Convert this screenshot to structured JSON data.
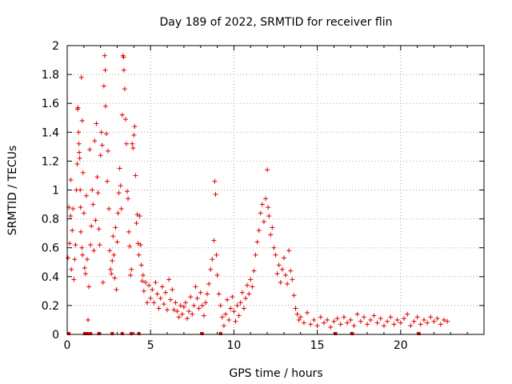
{
  "chart_data": {
    "type": "scatter",
    "title": "Day 189 of 2022, SRMTID for receiver flin",
    "xlabel": "GPS time / hours",
    "ylabel": "SRMTID / TECUs",
    "xlim": [
      0,
      25
    ],
    "ylim": [
      0,
      2
    ],
    "xticks": [
      0,
      5,
      10,
      15,
      20
    ],
    "yticks": [
      0,
      0.2,
      0.4,
      0.6,
      0.8,
      1,
      1.2,
      1.4,
      1.6,
      1.8,
      2
    ],
    "grid": true,
    "marker": "+",
    "color": "#e00000",
    "x_hours_note": "x in hours, y in TECU",
    "series": [
      {
        "name": "SRMTID",
        "points": [
          [
            0.05,
            0.53
          ],
          [
            0.1,
            0.88
          ],
          [
            0.15,
            0.63
          ],
          [
            0.2,
            0.82
          ],
          [
            0.22,
            1.07
          ],
          [
            0.25,
            0.45
          ],
          [
            0.3,
            0.72
          ],
          [
            0.35,
            0.87
          ],
          [
            0.4,
            0.38
          ],
          [
            0.45,
            0.52
          ],
          [
            0.5,
            0.62
          ],
          [
            0.55,
            1.0
          ],
          [
            0.6,
            1.18
          ],
          [
            0.62,
            1.56
          ],
          [
            0.65,
            1.57
          ],
          [
            0.68,
            1.4
          ],
          [
            0.7,
            1.32
          ],
          [
            0.72,
            1.26
          ],
          [
            0.75,
            1.22
          ],
          [
            0.78,
            1.0
          ],
          [
            0.8,
            0.88
          ],
          [
            0.82,
            0.71
          ],
          [
            0.85,
            1.78
          ],
          [
            0.88,
            0.6
          ],
          [
            0.9,
            1.48
          ],
          [
            0.92,
            0.55
          ],
          [
            0.95,
            1.12
          ],
          [
            1.0,
            0.84
          ],
          [
            1.05,
            0.46
          ],
          [
            1.1,
            0.42
          ],
          [
            1.15,
            0.96
          ],
          [
            1.2,
            0.52
          ],
          [
            1.25,
            0.1
          ],
          [
            1.3,
            0.33
          ],
          [
            1.35,
            1.28
          ],
          [
            1.4,
            0.62
          ],
          [
            1.45,
            0.75
          ],
          [
            1.5,
            1.0
          ],
          [
            1.55,
            0.9
          ],
          [
            1.6,
            0.58
          ],
          [
            1.65,
            1.34
          ],
          [
            1.7,
            0.79
          ],
          [
            1.75,
            1.46
          ],
          [
            1.8,
            1.09
          ],
          [
            1.85,
            0.98
          ],
          [
            1.9,
            0.73
          ],
          [
            1.95,
            0.62
          ],
          [
            2.0,
            1.24
          ],
          [
            2.05,
            1.4
          ],
          [
            2.1,
            1.31
          ],
          [
            2.15,
            0.36
          ],
          [
            2.2,
            1.72
          ],
          [
            2.25,
            1.93
          ],
          [
            2.28,
            1.83
          ],
          [
            2.3,
            1.58
          ],
          [
            2.35,
            1.39
          ],
          [
            2.4,
            1.06
          ],
          [
            2.45,
            1.27
          ],
          [
            2.5,
            0.87
          ],
          [
            2.55,
            0.58
          ],
          [
            2.6,
            0.45
          ],
          [
            2.65,
            0.42
          ],
          [
            2.7,
            0.51
          ],
          [
            2.75,
            0.68
          ],
          [
            2.8,
            0.55
          ],
          [
            2.85,
            0.39
          ],
          [
            2.9,
            0.74
          ],
          [
            2.95,
            0.31
          ],
          [
            3.0,
            0.64
          ],
          [
            3.05,
            0.84
          ],
          [
            3.1,
            0.98
          ],
          [
            3.15,
            1.15
          ],
          [
            3.2,
            1.03
          ],
          [
            3.25,
            0.87
          ],
          [
            3.3,
            1.52
          ],
          [
            3.35,
            1.93
          ],
          [
            3.38,
            1.92
          ],
          [
            3.4,
            1.83
          ],
          [
            3.45,
            1.7
          ],
          [
            3.5,
            1.49
          ],
          [
            3.55,
            1.32
          ],
          [
            3.6,
            0.99
          ],
          [
            3.65,
            0.94
          ],
          [
            3.7,
            0.71
          ],
          [
            3.75,
            0.61
          ],
          [
            3.8,
            0.41
          ],
          [
            3.85,
            0.45
          ],
          [
            3.9,
            1.32
          ],
          [
            3.95,
            1.29
          ],
          [
            4.0,
            1.38
          ],
          [
            4.05,
            1.44
          ],
          [
            4.1,
            1.1
          ],
          [
            4.15,
            0.77
          ],
          [
            4.2,
            0.83
          ],
          [
            4.25,
            0.63
          ],
          [
            4.3,
            0.55
          ],
          [
            4.35,
            0.82
          ],
          [
            4.4,
            0.62
          ],
          [
            4.45,
            0.48
          ],
          [
            4.5,
            0.37
          ],
          [
            4.55,
            0.41
          ],
          [
            4.6,
            0.3
          ],
          [
            4.7,
            0.36
          ],
          [
            4.8,
            0.22
          ],
          [
            4.9,
            0.34
          ],
          [
            5.0,
            0.25
          ],
          [
            5.1,
            0.31
          ],
          [
            5.2,
            0.22
          ],
          [
            5.3,
            0.36
          ],
          [
            5.4,
            0.28
          ],
          [
            5.5,
            0.18
          ],
          [
            5.6,
            0.25
          ],
          [
            5.7,
            0.33
          ],
          [
            5.8,
            0.21
          ],
          [
            5.9,
            0.29
          ],
          [
            6.0,
            0.17
          ],
          [
            6.1,
            0.38
          ],
          [
            6.2,
            0.24
          ],
          [
            6.3,
            0.31
          ],
          [
            6.4,
            0.17
          ],
          [
            6.5,
            0.22
          ],
          [
            6.6,
            0.16
          ],
          [
            6.7,
            0.12
          ],
          [
            6.8,
            0.2
          ],
          [
            6.9,
            0.14
          ],
          [
            7.0,
            0.19
          ],
          [
            7.1,
            0.22
          ],
          [
            7.2,
            0.11
          ],
          [
            7.3,
            0.16
          ],
          [
            7.4,
            0.26
          ],
          [
            7.5,
            0.14
          ],
          [
            7.6,
            0.2
          ],
          [
            7.7,
            0.33
          ],
          [
            7.8,
            0.25
          ],
          [
            7.9,
            0.18
          ],
          [
            8.0,
            0.29
          ],
          [
            8.1,
            0.2
          ],
          [
            8.2,
            0.13
          ],
          [
            8.3,
            0.22
          ],
          [
            8.4,
            0.28
          ],
          [
            8.5,
            0.35
          ],
          [
            8.6,
            0.45
          ],
          [
            8.7,
            0.52
          ],
          [
            8.8,
            0.65
          ],
          [
            8.85,
            1.06
          ],
          [
            8.9,
            0.97
          ],
          [
            8.95,
            0.55
          ],
          [
            9.0,
            0.41
          ],
          [
            9.1,
            0.28
          ],
          [
            9.2,
            0.2
          ],
          [
            9.3,
            0.12
          ],
          [
            9.4,
            0.06
          ],
          [
            9.5,
            0.14
          ],
          [
            9.6,
            0.24
          ],
          [
            9.7,
            0.1
          ],
          [
            9.8,
            0.18
          ],
          [
            9.9,
            0.26
          ],
          [
            10.0,
            0.16
          ],
          [
            10.1,
            0.09
          ],
          [
            10.2,
            0.2
          ],
          [
            10.3,
            0.13
          ],
          [
            10.4,
            0.22
          ],
          [
            10.5,
            0.29
          ],
          [
            10.6,
            0.18
          ],
          [
            10.7,
            0.25
          ],
          [
            10.8,
            0.34
          ],
          [
            10.9,
            0.28
          ],
          [
            11.0,
            0.38
          ],
          [
            11.1,
            0.33
          ],
          [
            11.2,
            0.44
          ],
          [
            11.3,
            0.55
          ],
          [
            11.4,
            0.64
          ],
          [
            11.5,
            0.72
          ],
          [
            11.6,
            0.84
          ],
          [
            11.7,
            0.9
          ],
          [
            11.8,
            0.78
          ],
          [
            11.9,
            0.94
          ],
          [
            12.0,
            1.14
          ],
          [
            12.05,
            0.88
          ],
          [
            12.1,
            0.82
          ],
          [
            12.2,
            0.69
          ],
          [
            12.3,
            0.74
          ],
          [
            12.4,
            0.6
          ],
          [
            12.5,
            0.55
          ],
          [
            12.6,
            0.42
          ],
          [
            12.7,
            0.48
          ],
          [
            12.8,
            0.36
          ],
          [
            12.9,
            0.45
          ],
          [
            13.0,
            0.53
          ],
          [
            13.1,
            0.41
          ],
          [
            13.2,
            0.35
          ],
          [
            13.3,
            0.58
          ],
          [
            13.4,
            0.44
          ],
          [
            13.5,
            0.38
          ],
          [
            13.6,
            0.27
          ],
          [
            13.7,
            0.18
          ],
          [
            13.8,
            0.14
          ],
          [
            13.9,
            0.1
          ],
          [
            14.0,
            0.12
          ],
          [
            14.2,
            0.08
          ],
          [
            14.4,
            0.15
          ],
          [
            14.6,
            0.07
          ],
          [
            14.8,
            0.1
          ],
          [
            15.0,
            0.06
          ],
          [
            15.2,
            0.12
          ],
          [
            15.4,
            0.08
          ],
          [
            15.6,
            0.1
          ],
          [
            15.8,
            0.05
          ],
          [
            16.0,
            0.09
          ],
          [
            16.2,
            0.11
          ],
          [
            16.4,
            0.07
          ],
          [
            16.6,
            0.12
          ],
          [
            16.8,
            0.08
          ],
          [
            17.0,
            0.1
          ],
          [
            17.2,
            0.06
          ],
          [
            17.4,
            0.14
          ],
          [
            17.6,
            0.09
          ],
          [
            17.8,
            0.12
          ],
          [
            18.0,
            0.07
          ],
          [
            18.2,
            0.1
          ],
          [
            18.4,
            0.13
          ],
          [
            18.6,
            0.08
          ],
          [
            18.8,
            0.11
          ],
          [
            19.0,
            0.06
          ],
          [
            19.2,
            0.09
          ],
          [
            19.4,
            0.12
          ],
          [
            19.6,
            0.07
          ],
          [
            19.8,
            0.1
          ],
          [
            20.0,
            0.08
          ],
          [
            20.2,
            0.11
          ],
          [
            20.4,
            0.14
          ],
          [
            20.6,
            0.06
          ],
          [
            20.8,
            0.09
          ],
          [
            21.0,
            0.12
          ],
          [
            21.2,
            0.07
          ],
          [
            21.4,
            0.1
          ],
          [
            21.6,
            0.08
          ],
          [
            21.8,
            0.12
          ],
          [
            22.0,
            0.09
          ],
          [
            22.2,
            0.11
          ],
          [
            22.4,
            0.07
          ],
          [
            22.6,
            0.1
          ],
          [
            22.8,
            0.09
          ]
        ],
        "zero_markers_x": [
          0.1,
          1.05,
          1.2,
          1.4,
          1.9,
          2.7,
          3.3,
          3.85,
          4.3,
          8.1,
          9.2,
          16.1,
          17.1,
          21.1
        ]
      }
    ]
  }
}
